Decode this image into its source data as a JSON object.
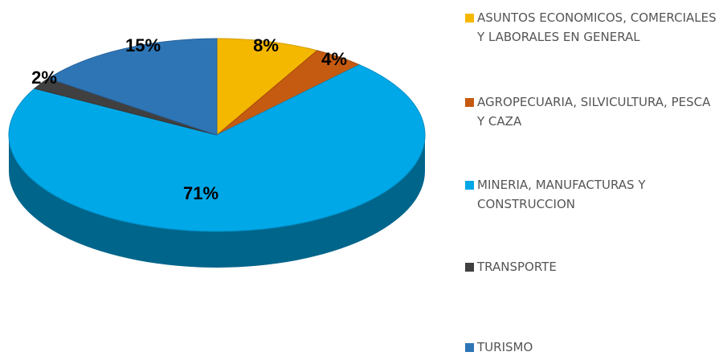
{
  "chart_data": {
    "type": "pie",
    "categories": [
      "ASUNTOS ECONOMICOS, COMERCIALES Y LABORALES EN GENERAL",
      "AGROPECUARIA, SILVICULTURA, PESCA Y CAZA",
      "MINERIA, MANUFACTURAS Y CONSTRUCCION",
      "TRANSPORTE",
      "TURISMO"
    ],
    "values": [
      8,
      4,
      71,
      2,
      15
    ],
    "value_labels": [
      "8%",
      "4%",
      "71%",
      "2%",
      "15%"
    ],
    "colors": [
      "#f5b800",
      "#c55a11",
      "#00a8e8",
      "#404040",
      "#2e75b6"
    ],
    "legend": "right"
  }
}
